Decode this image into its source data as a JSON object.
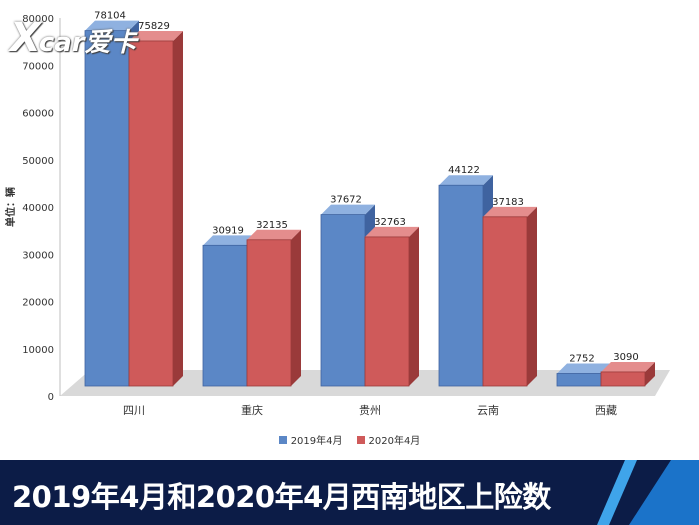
{
  "logo": {
    "mark": "X",
    "text": "car爱卡"
  },
  "banner": {
    "title": "2019年4月和2020年4月西南地区上险数"
  },
  "colors": {
    "series_2019": "#5b87c6",
    "series_2019_side": "#3f63a0",
    "series_2020": "#cf5a5a",
    "series_2020_side": "#9a3a3a",
    "floor": "#d9d9d9",
    "banner_bg": "#0c1c47"
  },
  "chart_data": {
    "type": "bar",
    "title": "",
    "xlabel": "",
    "ylabel": "单位：辆",
    "ylim": [
      0,
      80000
    ],
    "yticks": [
      0,
      10000,
      20000,
      30000,
      40000,
      50000,
      60000,
      70000,
      80000
    ],
    "categories": [
      "四川",
      "重庆",
      "贵州",
      "云南",
      "西藏"
    ],
    "series": [
      {
        "name": "2019年4月",
        "values": [
          78104,
          30919,
          37672,
          44122,
          2752
        ]
      },
      {
        "name": "2020年4月",
        "values": [
          75829,
          32135,
          32763,
          37183,
          3090
        ]
      }
    ],
    "data_labels": true,
    "legend_position": "bottom",
    "style": "3d-column"
  }
}
